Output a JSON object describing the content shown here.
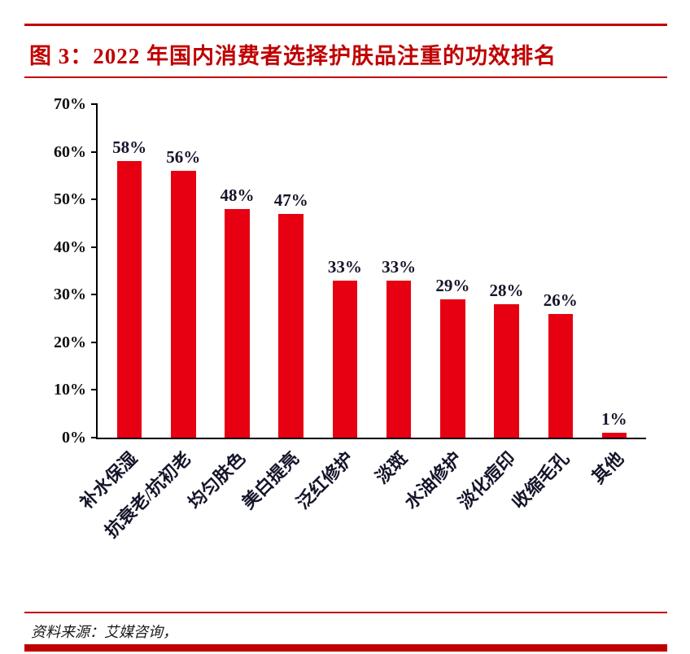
{
  "figure": {
    "title": "图 3：2022 年国内消费者选择护肤品注重的功效排名"
  },
  "footer": {
    "source": "资料来源：艾媒咨询，"
  },
  "chart_data": {
    "type": "bar",
    "title": "2022 年国内消费者选择护肤品注重的功效排名",
    "categories": [
      "补水保湿",
      "抗衰老/抗初老",
      "均匀肤色",
      "美白提亮",
      "泛红修护",
      "淡斑",
      "水油修护",
      "淡化痘印",
      "收缩毛孔",
      "其他"
    ],
    "values": [
      58,
      56,
      48,
      47,
      33,
      33,
      29,
      28,
      26,
      1
    ],
    "labels": [
      "58%",
      "56%",
      "48%",
      "47%",
      "33%",
      "33%",
      "29%",
      "28%",
      "26%",
      "1%"
    ],
    "xlabel": "",
    "ylabel": "",
    "ylim": [
      0,
      70
    ],
    "ytick_step": 10,
    "ytick_suffix": "%",
    "grid": false,
    "legend": "none",
    "bar_color": "#e60012"
  },
  "style": {
    "accent_red": "#c00000",
    "bar_red": "#e60012",
    "text_dark": "#15152a"
  }
}
